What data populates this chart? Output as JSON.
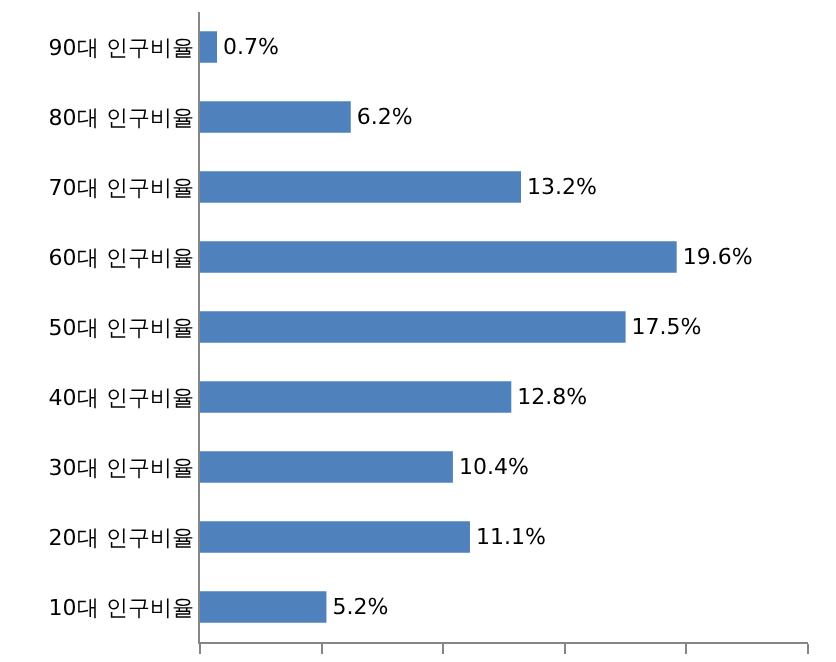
{
  "chart_data": {
    "type": "bar",
    "orientation": "horizontal",
    "categories": [
      "90대 인구비율",
      "80대 인구비율",
      "70대 인구비율",
      "60대 인구비율",
      "50대 인구비율",
      "40대 인구비율",
      "30대 인구비율",
      "20대 인구비율",
      "10대 인구비율"
    ],
    "values": [
      0.7,
      6.2,
      13.2,
      19.6,
      17.5,
      12.8,
      10.4,
      11.1,
      5.2
    ],
    "value_labels": [
      "0.7%",
      "6.2%",
      "13.2%",
      "19.6%",
      "17.5%",
      "12.8%",
      "10.4%",
      "11.1%",
      "5.2%"
    ],
    "color": "#4f81bd",
    "xlim": [
      0,
      25
    ],
    "xticks": [
      {
        "value": 0,
        "label": null
      },
      {
        "value": 5,
        "label": null
      },
      {
        "value": 10,
        "label": null
      },
      {
        "value": 15,
        "label": null
      },
      {
        "value": 20,
        "label": null
      },
      {
        "value": 25,
        "label": null
      }
    ],
    "tick_labels": "y"
  }
}
